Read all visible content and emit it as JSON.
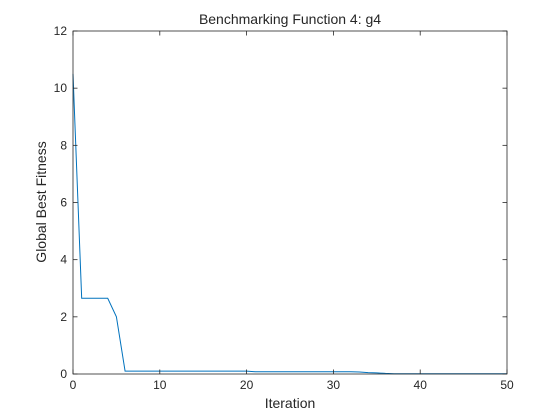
{
  "chart_data": {
    "type": "line",
    "title": "Benchmarking Function 4: g4",
    "xlabel": "Iteration",
    "ylabel": "Global Best Fitness",
    "xlim": [
      0,
      50
    ],
    "ylim": [
      0,
      12
    ],
    "xticks": [
      0,
      10,
      20,
      30,
      40,
      50
    ],
    "yticks": [
      0,
      2,
      4,
      6,
      8,
      10,
      12
    ],
    "grid": false,
    "legend": "none",
    "series": [
      {
        "color": "#0072BD",
        "x": [
          0,
          1,
          2,
          3,
          4,
          5,
          6,
          7,
          8,
          9,
          10,
          11,
          12,
          13,
          14,
          15,
          16,
          17,
          18,
          19,
          20,
          21,
          22,
          23,
          24,
          25,
          26,
          27,
          28,
          29,
          30,
          31,
          32,
          33,
          34,
          35,
          36,
          37,
          38,
          39,
          40,
          41,
          42,
          43,
          44,
          45,
          46,
          47,
          48,
          49,
          50
        ],
        "y": [
          10.5,
          2.65,
          2.65,
          2.65,
          2.65,
          2.0,
          0.1,
          0.1,
          0.1,
          0.1,
          0.1,
          0.1,
          0.1,
          0.1,
          0.1,
          0.1,
          0.1,
          0.1,
          0.1,
          0.1,
          0.1,
          0.08,
          0.08,
          0.08,
          0.08,
          0.08,
          0.08,
          0.08,
          0.08,
          0.08,
          0.08,
          0.08,
          0.08,
          0.07,
          0.05,
          0.04,
          0.02,
          0.01,
          0.01,
          0.01,
          0.01,
          0.01,
          0.01,
          0.01,
          0.01,
          0.01,
          0.01,
          0.01,
          0.01,
          0.01,
          0.01
        ]
      }
    ]
  }
}
